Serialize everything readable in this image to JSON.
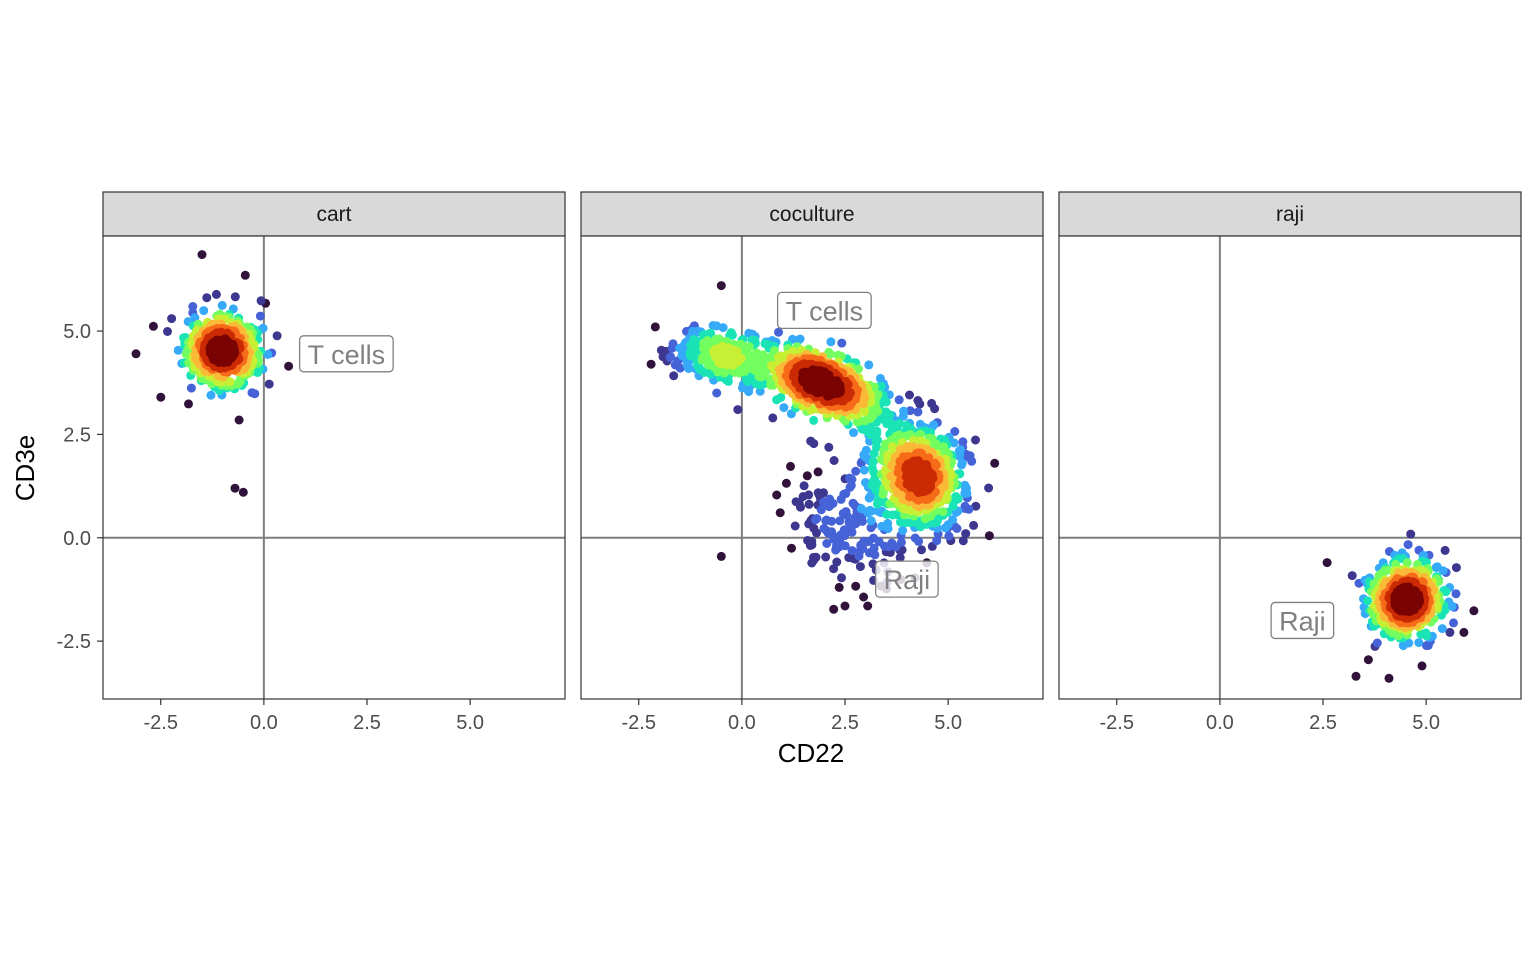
{
  "chart_data": {
    "type": "scatter",
    "title": "",
    "xlabel": "CD22",
    "ylabel": "CD3e",
    "xlim": [
      -3.9,
      7.3
    ],
    "ylim": [
      -3.9,
      7.3
    ],
    "x_ticks": [
      -2.5,
      0.0,
      2.5,
      5.0
    ],
    "x_tick_labels": [
      "-2.5",
      "0.0",
      "2.5",
      "5.0"
    ],
    "y_ticks": [
      -2.5,
      0.0,
      2.5,
      5.0
    ],
    "y_tick_labels": [
      "-2.5",
      "0.0",
      "2.5",
      "5.0"
    ],
    "reference_lines": {
      "x": 0.0,
      "y": 0.0
    },
    "color_encoding": "point density (turbo palette: dark purple = low, dark red = high)",
    "palette": [
      "#30123b",
      "#3e378f",
      "#4662d7",
      "#36aaf9",
      "#1ae4b6",
      "#72fe5e",
      "#c7ef34",
      "#fbb938",
      "#f66b19",
      "#ca2a04",
      "#7a0403"
    ],
    "grid": false,
    "legend": "none",
    "panels": [
      {
        "facet": "cart",
        "clusters": [
          {
            "center": [
              -1.0,
              4.5
            ],
            "sd": [
              0.42,
              0.42
            ],
            "rho": 0.0,
            "n": 650
          }
        ],
        "outliers": [
          [
            -1.5,
            6.85
          ],
          [
            -0.45,
            6.35
          ],
          [
            -3.1,
            4.45
          ],
          [
            0.6,
            4.15
          ],
          [
            -0.7,
            1.2
          ],
          [
            -0.5,
            1.1
          ],
          [
            -2.5,
            3.4
          ],
          [
            -0.6,
            2.85
          ]
        ],
        "labels": [
          {
            "text": "T cells",
            "x": 2.0,
            "y": 4.45
          }
        ]
      },
      {
        "facet": "coculture",
        "clusters": [
          {
            "center": [
              -0.5,
              4.4
            ],
            "sd": [
              0.5,
              0.32
            ],
            "rho": -0.2,
            "n": 260
          },
          {
            "center": [
              1.95,
              3.75
            ],
            "sd": [
              0.75,
              0.45
            ],
            "rho": -0.55,
            "n": 750
          },
          {
            "center": [
              4.3,
              1.5
            ],
            "sd": [
              0.55,
              0.6
            ],
            "rho": -0.15,
            "n": 650
          },
          {
            "center": [
              2.8,
              0.3
            ],
            "sd": [
              0.9,
              0.7
            ],
            "rho": -0.2,
            "n": 170
          }
        ],
        "outliers": [
          [
            -0.5,
            6.1
          ],
          [
            -2.1,
            5.1
          ],
          [
            -2.2,
            4.2
          ],
          [
            -0.1,
            3.1
          ],
          [
            -0.5,
            -0.45
          ],
          [
            2.5,
            -1.65
          ],
          [
            3.05,
            -1.65
          ],
          [
            6.0,
            0.05
          ],
          [
            4.6,
            3.25
          ],
          [
            0.75,
            2.9
          ]
        ],
        "labels": [
          {
            "text": "T cells",
            "x": 2.0,
            "y": 5.5
          },
          {
            "text": "Raji",
            "x": 4.0,
            "y": -1.0
          }
        ]
      },
      {
        "facet": "raji",
        "clusters": [
          {
            "center": [
              4.5,
              -1.5
            ],
            "sd": [
              0.42,
              0.42
            ],
            "rho": 0.0,
            "n": 650
          }
        ],
        "outliers": [
          [
            3.3,
            -3.35
          ],
          [
            4.9,
            -3.1
          ],
          [
            5.1,
            -2.5
          ],
          [
            2.6,
            -0.6
          ],
          [
            5.55,
            -1.55
          ],
          [
            4.5,
            -0.45
          ],
          [
            3.6,
            -2.95
          ],
          [
            4.1,
            -3.4
          ]
        ],
        "labels": [
          {
            "text": "Raji",
            "x": 2.0,
            "y": -2.0
          }
        ]
      }
    ]
  }
}
